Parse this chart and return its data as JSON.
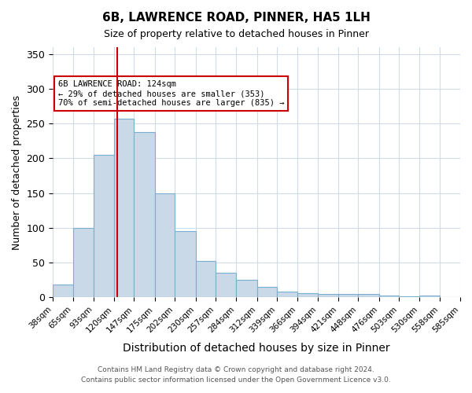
{
  "title": "6B, LAWRENCE ROAD, PINNER, HA5 1LH",
  "subtitle": "Size of property relative to detached houses in Pinner",
  "xlabel": "Distribution of detached houses by size in Pinner",
  "ylabel": "Number of detached properties",
  "bin_labels": [
    "38sqm",
    "65sqm",
    "93sqm",
    "120sqm",
    "147sqm",
    "175sqm",
    "202sqm",
    "230sqm",
    "257sqm",
    "284sqm",
    "312sqm",
    "339sqm",
    "366sqm",
    "394sqm",
    "421sqm",
    "448sqm",
    "476sqm",
    "503sqm",
    "530sqm",
    "558sqm",
    "585sqm"
  ],
  "bin_edges": [
    38,
    65,
    93,
    120,
    147,
    175,
    202,
    230,
    257,
    284,
    312,
    339,
    366,
    394,
    421,
    448,
    476,
    503,
    530,
    558,
    585
  ],
  "bar_heights": [
    18,
    100,
    205,
    257,
    238,
    150,
    95,
    52,
    35,
    25,
    15,
    8,
    6,
    5,
    5,
    5,
    3,
    1,
    3,
    0
  ],
  "bar_color": "#c9d9e8",
  "bar_edge_color": "#7aafcf",
  "property_line_x": 124,
  "property_line_color": "#cc0000",
  "annotation_text": "6B LAWRENCE ROAD: 124sqm\n← 29% of detached houses are smaller (353)\n70% of semi-detached houses are larger (835) →",
  "annotation_box_color": "#ffffff",
  "annotation_box_edge": "#cc0000",
  "ylim": [
    0,
    360
  ],
  "yticks": [
    0,
    50,
    100,
    150,
    200,
    250,
    300,
    350
  ],
  "footer_line1": "Contains HM Land Registry data © Crown copyright and database right 2024.",
  "footer_line2": "Contains public sector information licensed under the Open Government Licence v3.0.",
  "background_color": "#ffffff",
  "grid_color": "#d0dce8"
}
